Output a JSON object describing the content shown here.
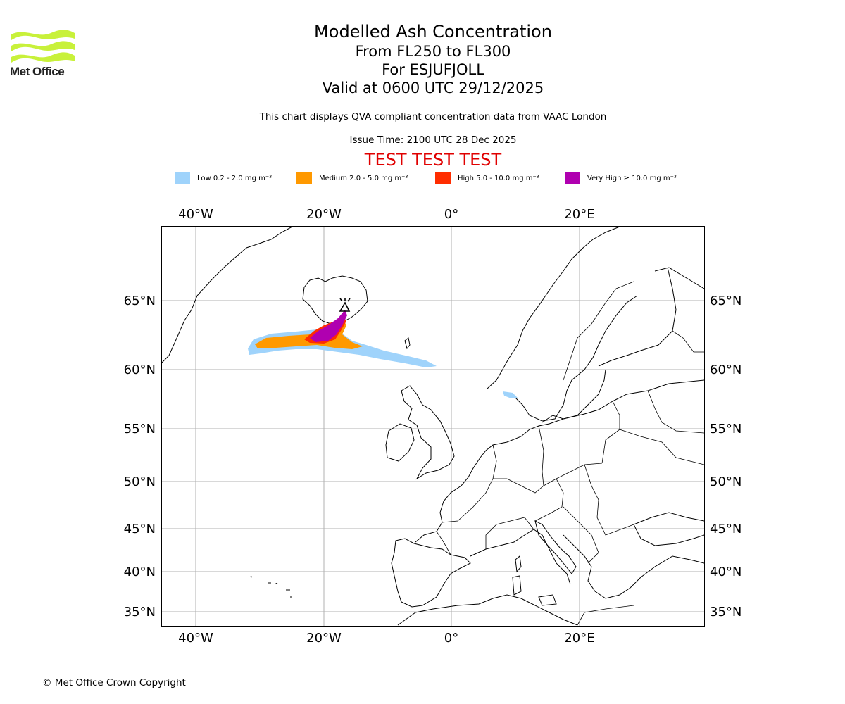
{
  "header": {
    "logo_text": "Met Office",
    "title": "Modelled Ash Concentration",
    "level": "From FL250 to FL300",
    "volcano": "For ESJUFJOLL",
    "valid": "Valid at 0600 UTC 29/12/2025",
    "description": "This chart displays QVA compliant concentration data from VAAC London",
    "issue_time": "Issue Time: 2100 UTC 28 Dec 2025",
    "test_banner": "TEST TEST TEST"
  },
  "legend": [
    {
      "label": "Low 0.2 - 2.0 mg m⁻³",
      "color": "#9fd3fb"
    },
    {
      "label": "Medium 2.0 - 5.0 mg m⁻³",
      "color": "#ff9900"
    },
    {
      "label": "High 5.0 - 10.0 mg m⁻³",
      "color": "#ff2d00"
    },
    {
      "label": "Very High  ≥  10.0 mg m⁻³",
      "color": "#b000b0"
    }
  ],
  "map": {
    "longitude_ticks": [
      "40°W",
      "20°W",
      "0°",
      "20°E"
    ],
    "latitude_ticks": [
      "65°N",
      "60°N",
      "55°N",
      "50°N",
      "45°N",
      "40°N",
      "35°N"
    ],
    "volcano_symbol": "volcano-marker",
    "colors": {
      "grid": "#b0b0b0",
      "coast": "#000000"
    }
  },
  "footer": {
    "copyright": "© Met Office Crown Copyright"
  }
}
